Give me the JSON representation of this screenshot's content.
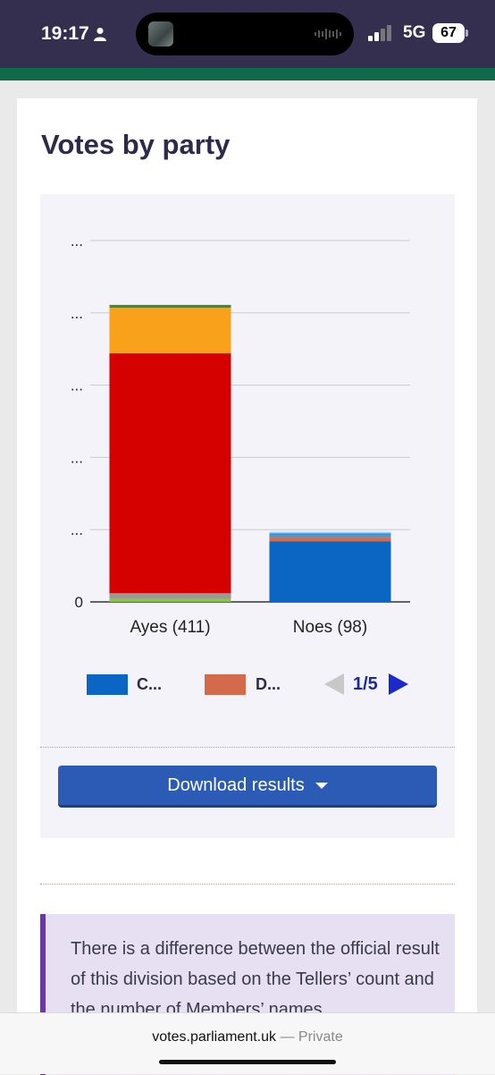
{
  "status_bar": {
    "time": "19:17",
    "network": "5G",
    "battery": "67"
  },
  "page": {
    "heading": "Votes by party"
  },
  "chart_data": {
    "type": "bar",
    "stacked": true,
    "categories": [
      "Ayes (411)",
      "Noes (98)"
    ],
    "y_tick_labels": [
      "0",
      "...",
      "...",
      "...",
      "...",
      "..."
    ],
    "y_ticks": [
      0,
      100,
      200,
      300,
      400,
      500
    ],
    "ylim": [
      0,
      500
    ],
    "grid": true,
    "series": [
      {
        "color": "#8bc34a",
        "values": [
          4,
          0
        ]
      },
      {
        "color": "#999999",
        "values": [
          8,
          0
        ]
      },
      {
        "color": "#d50000",
        "values": [
          332,
          0
        ]
      },
      {
        "color": "#f9a11b",
        "values": [
          63,
          0
        ]
      },
      {
        "color": "#3a8e3a",
        "values": [
          4,
          0
        ]
      },
      {
        "color": "#0a66c2",
        "values": [
          0,
          84
        ]
      },
      {
        "color": "#d46a4c",
        "values": [
          0,
          5
        ]
      },
      {
        "color": "#888888",
        "values": [
          0,
          3
        ]
      },
      {
        "color": "#1e90ff",
        "values": [
          0,
          3
        ]
      },
      {
        "color": "#9fd3e8",
        "values": [
          0,
          2
        ]
      }
    ]
  },
  "legend": {
    "items": [
      {
        "label": "C...",
        "color": "#0a66c2"
      },
      {
        "label": "D...",
        "color": "#d46a4c"
      }
    ],
    "page_label": "1/5"
  },
  "actions": {
    "download_label": "Download results"
  },
  "notice": {
    "text": "There is a difference between the official result of this division based on the Tellers’ count and the number of Members’ names"
  },
  "browser": {
    "url": "votes.parliament.uk",
    "separator": "—",
    "mode": "Private"
  }
}
